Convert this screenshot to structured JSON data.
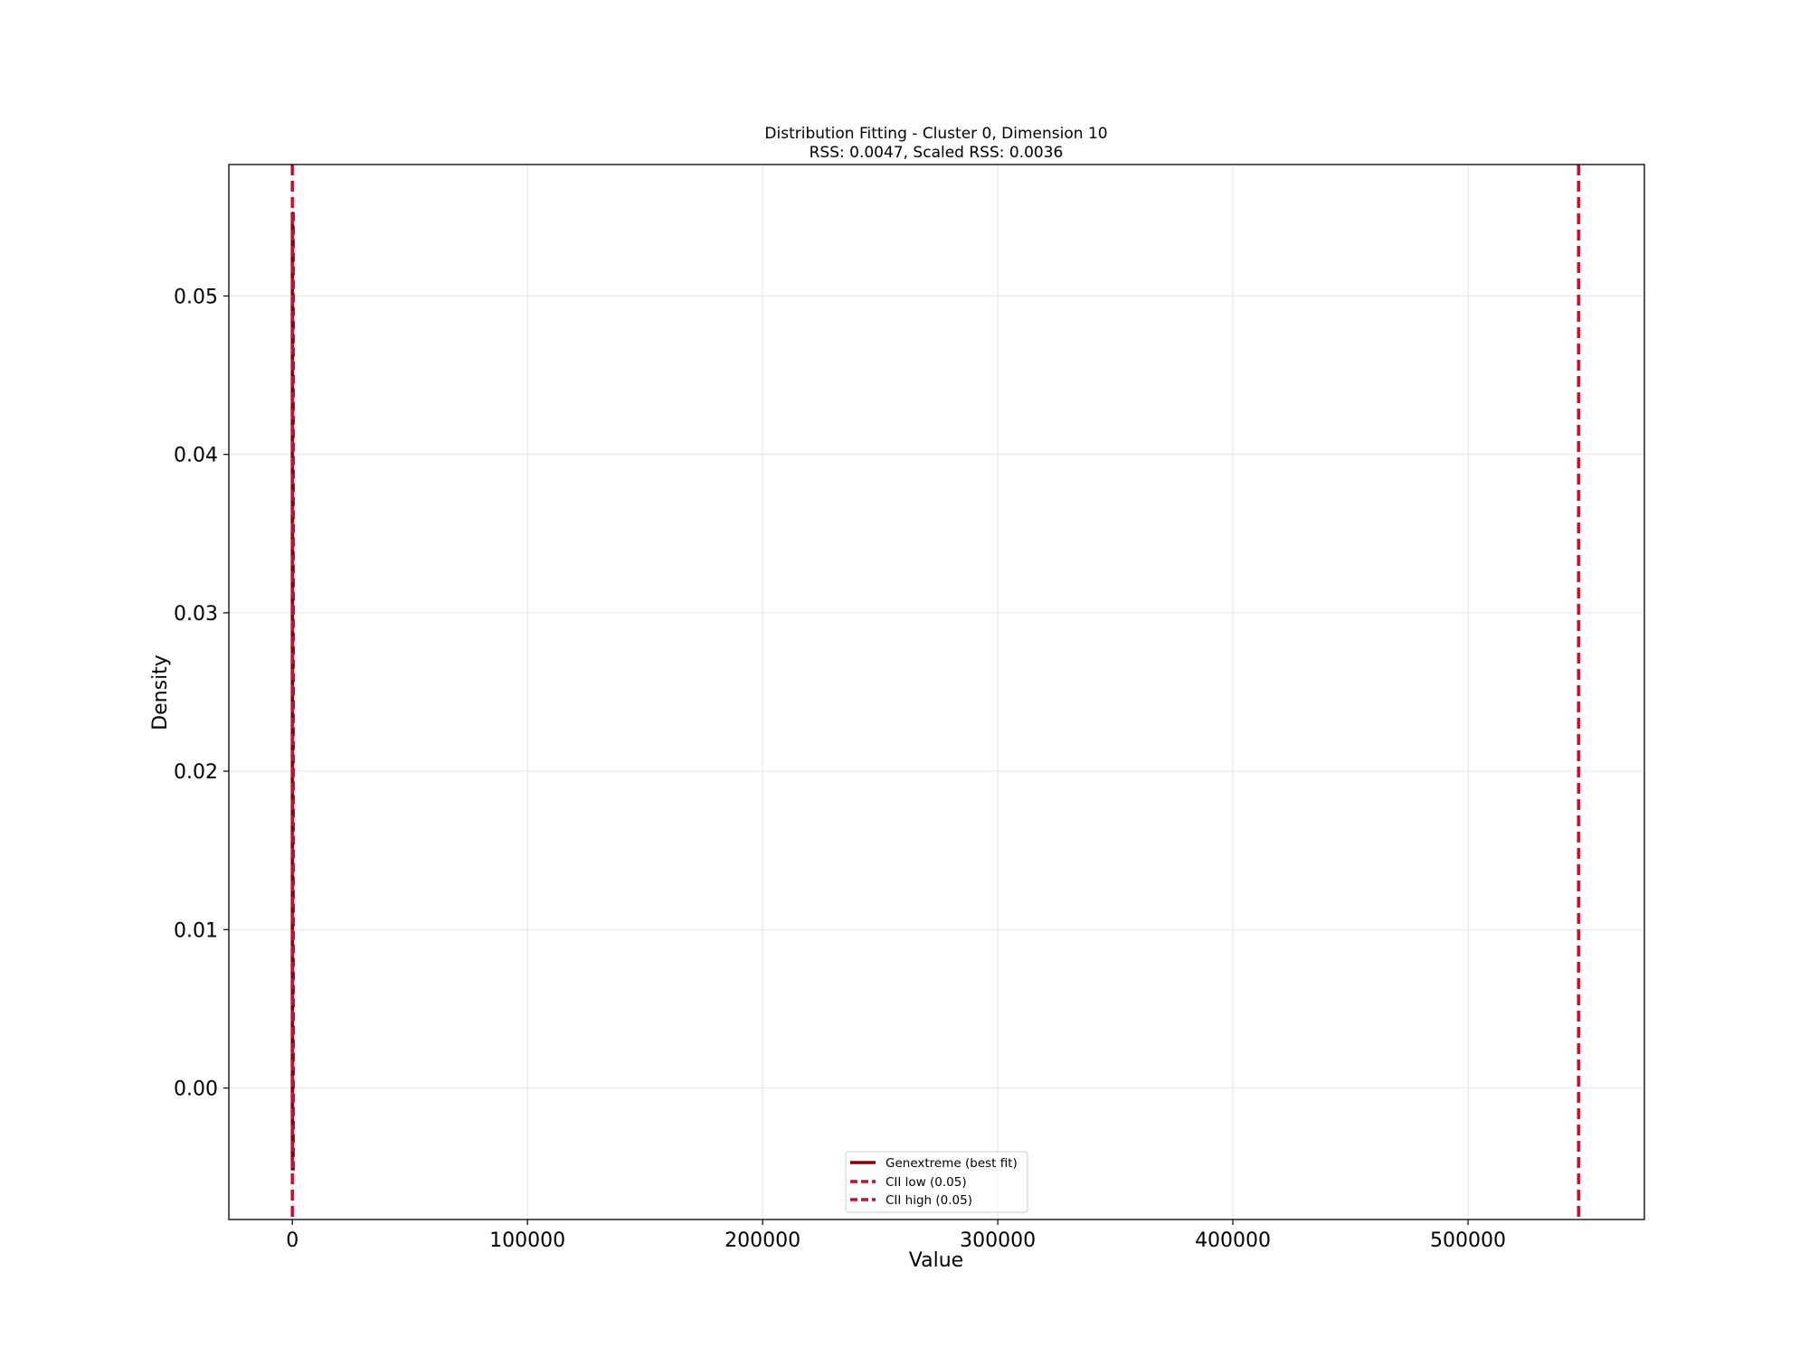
{
  "chart_data": {
    "type": "line",
    "title": "Distribution Fitting - Cluster 0, Dimension 10",
    "subtitle": "RSS: 0.0047, Scaled RSS: 0.0036",
    "xlabel": "Value",
    "ylabel": "Density",
    "xlim": [
      -27000,
      575000
    ],
    "ylim": [
      -0.0083,
      0.0583
    ],
    "x_ticks": [
      0,
      100000,
      200000,
      300000,
      400000,
      500000
    ],
    "x_tick_labels": [
      "0",
      "100000",
      "200000",
      "300000",
      "400000",
      "500000"
    ],
    "y_ticks": [
      0.0,
      0.01,
      0.02,
      0.03,
      0.04,
      0.05
    ],
    "y_tick_labels": [
      "0.00",
      "0.01",
      "0.02",
      "0.03",
      "0.04",
      "0.05"
    ],
    "grid": true,
    "legend_position": "lower-center",
    "series": [
      {
        "name": "Genextreme (best fit)",
        "style": "solid",
        "color": "#8b0000",
        "x": [
          0,
          0,
          0
        ],
        "y": [
          -0.0052,
          0.0,
          0.0553
        ]
      },
      {
        "name": "CII low (0.05)",
        "style": "dashed",
        "color": "#c8102e",
        "vline_x": 0
      },
      {
        "name": "CII high (0.05)",
        "style": "dashed",
        "color": "#c8102e",
        "vline_x": 547000
      }
    ],
    "histogram_outline": {
      "color": "#000000",
      "style": "dashed",
      "x": 200,
      "y": [
        -0.0052,
        0.0553
      ]
    }
  },
  "colors": {
    "best_fit": "#8b0000",
    "cii_lines": "#c8102e",
    "grid": "#e6e6e6",
    "axes": "#000000"
  }
}
